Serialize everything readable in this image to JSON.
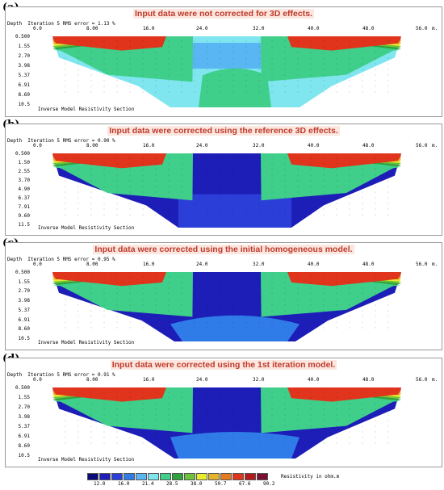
{
  "legend": {
    "colors": [
      "#0b0b7a",
      "#1d1db8",
      "#2b3fd8",
      "#2f7ce8",
      "#5ab6f2",
      "#7fe6ef",
      "#3fcf8a",
      "#2fa23c",
      "#6fc33a",
      "#e8ec2a",
      "#e2b42a",
      "#e67a1e",
      "#e1341c",
      "#b41a1a",
      "#7a1030"
    ],
    "values": [
      "12.0",
      "16.0",
      "21.4",
      "28.5",
      "38.0",
      "50.7",
      "67.6",
      "90.2"
    ],
    "title": "Resistivity in ohm.m"
  },
  "common": {
    "iteration": "Iteration 5 RMS error = ",
    "depth_label": "Depth",
    "x_ticks": [
      "0.0",
      "8.00",
      "16.0",
      "24.0",
      "32.0",
      "40.0",
      "48.0",
      "56.0"
    ],
    "x_unit": "m.",
    "footer": "Inverse Model Resistivity Section"
  },
  "panels": [
    {
      "label": "(a)",
      "caption": "Input data were not corrected for 3D effects.",
      "rms": "1.13 %",
      "depths": [
        "0.500",
        "1.55",
        "2.70",
        "3.98",
        "5.37",
        "6.91",
        "8.60",
        "10.5"
      ],
      "variant": "a"
    },
    {
      "label": "(b)",
      "caption": "Input data were corrected using the reference 3D effects.",
      "rms": "0.90 %",
      "depths": [
        "0.500",
        "1.50",
        "2.55",
        "3.70",
        "4.90",
        "6.37",
        "7.91",
        "9.60",
        "11.5"
      ],
      "variant": "b"
    },
    {
      "label": "(c)",
      "caption": "Input data were corrected using the initial homogeneous model.",
      "rms": "0.95 %",
      "depths": [
        "0.500",
        "1.55",
        "2.70",
        "3.98",
        "5.37",
        "6.91",
        "8.60",
        "10.5"
      ],
      "variant": "c"
    },
    {
      "label": "(d)",
      "caption": "Input data were corrected using the 1st iteration model.",
      "rms": "0.91 %",
      "depths": [
        "0.500",
        "1.55",
        "2.70",
        "3.98",
        "5.37",
        "6.91",
        "8.60",
        "10.5"
      ],
      "variant": "d"
    }
  ]
}
